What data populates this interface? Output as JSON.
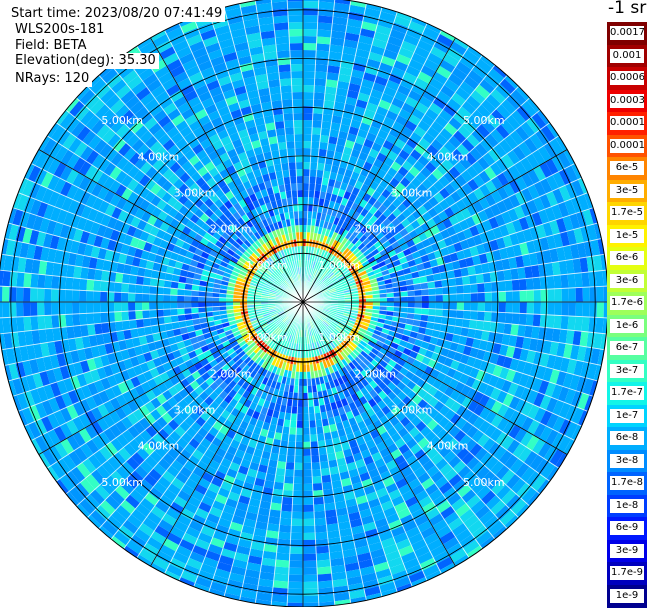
{
  "info": {
    "start_time": "Start time: 2023/08/20 07:41:49",
    "instrument": "WLS200s-181",
    "field": "Field: BETA",
    "elevation": "Elevation(deg): 35.30",
    "nrays": "NRays: 120"
  },
  "rays": 120,
  "range_ring_labels": [
    "1.00km",
    "2.00km",
    "3.00km",
    "4.00km",
    "5.00km"
  ],
  "colorbar": {
    "unit": "-1 sr",
    "labels": [
      "0.0017",
      "0.001",
      "0.0006",
      "0.0003",
      "0.00017",
      "0.0001",
      "6e-5",
      "3e-5",
      "1.7e-5",
      "1e-5",
      "6e-6",
      "3e-6",
      "1.7e-6",
      "1e-6",
      "6e-7",
      "3e-7",
      "1.7e-7",
      "1e-7",
      "6e-8",
      "3e-8",
      "1.7e-8",
      "1e-8",
      "6e-9",
      "3e-9",
      "1.7e-9",
      "1e-9"
    ],
    "colors": [
      "#7f0000",
      "#a00000",
      "#c80000",
      "#ee0000",
      "#ff2000",
      "#ff5200",
      "#ff8400",
      "#ffad00",
      "#ffd500",
      "#fff200",
      "#e5ff12",
      "#c1ff36",
      "#9eff5a",
      "#7aff7d",
      "#56ffa1",
      "#33ffc4",
      "#12f5e8",
      "#00d4ff",
      "#00aeff",
      "#008cff",
      "#0064ff",
      "#003eff",
      "#0018ff",
      "#0000e8",
      "#0000be",
      "#00008f"
    ]
  }
}
